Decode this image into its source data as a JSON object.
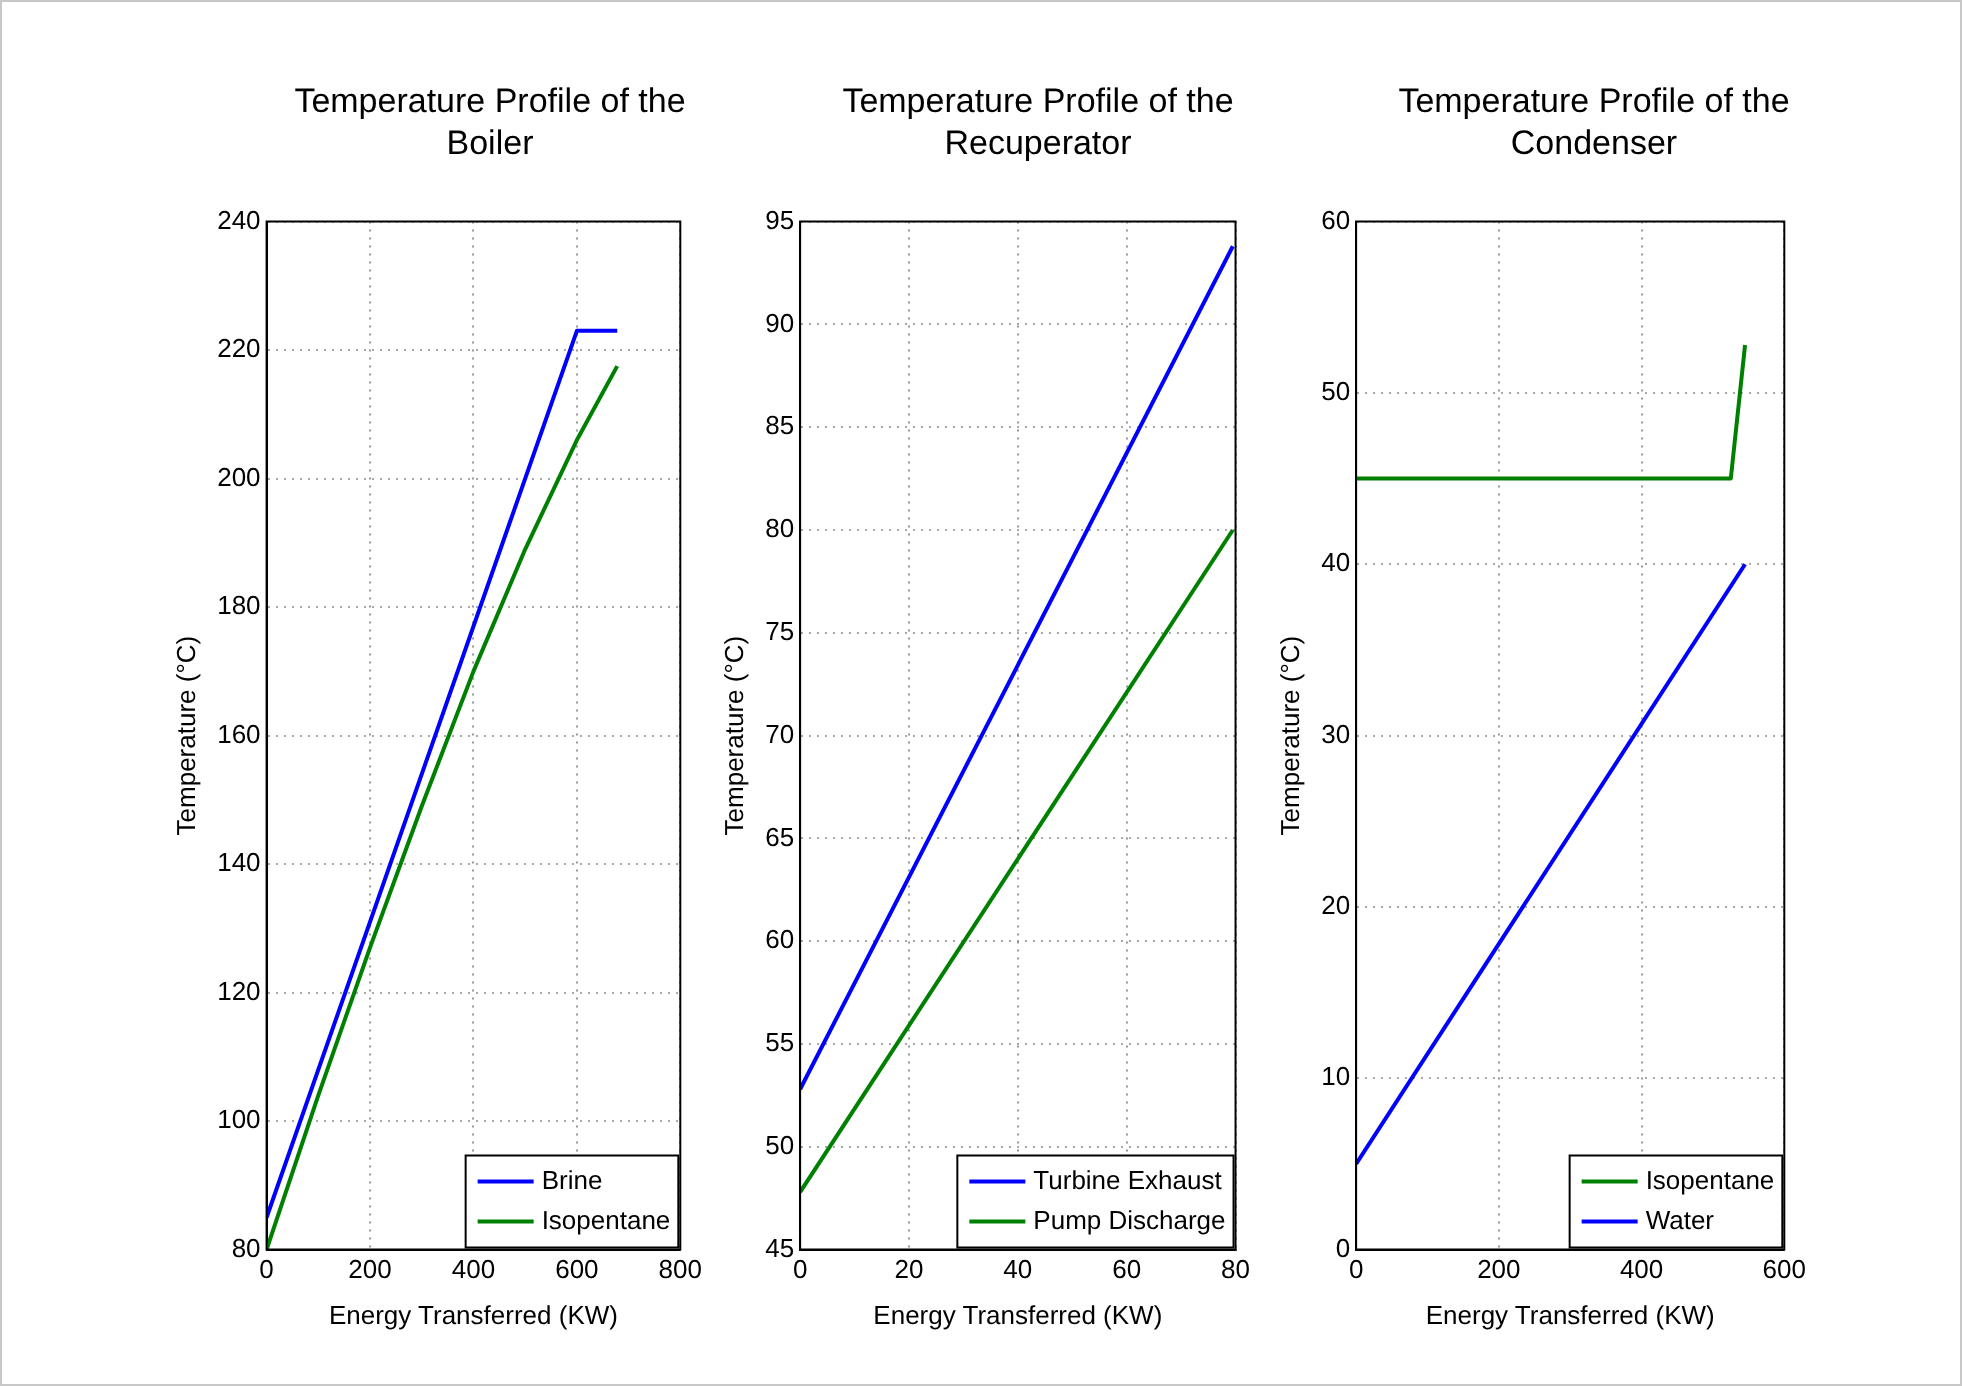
{
  "chart_data": [
    {
      "type": "line",
      "title": "Temperature Profile of the Boiler",
      "xlabel": "Energy Transferred (KW)",
      "ylabel": "Temperature (°C)",
      "xlim": [
        0,
        800
      ],
      "xticks": [
        0,
        200,
        400,
        600,
        800
      ],
      "ylim": [
        80,
        240
      ],
      "yticks": [
        80,
        100,
        120,
        140,
        160,
        180,
        200,
        220,
        240
      ],
      "grid": true,
      "legend": "bottom right",
      "line_style": "solid",
      "marker": "none",
      "series": [
        {
          "name": "Brine",
          "color": "#0000ff",
          "x": [
            0,
            600,
            678
          ],
          "values": [
            85,
            223,
            223
          ]
        },
        {
          "name": "Isopentane",
          "color": "#008000",
          "x": [
            0,
            100,
            200,
            300,
            400,
            500,
            600,
            678
          ],
          "values": [
            80,
            104,
            127,
            149,
            170,
            189,
            206,
            217.5
          ]
        }
      ]
    },
    {
      "type": "line",
      "title": "Temperature Profile of the Recuperator",
      "xlabel": "Energy Transferred (KW)",
      "ylabel": "Temperature (°C)",
      "xlim": [
        0,
        80
      ],
      "xticks": [
        0,
        20,
        40,
        60,
        80
      ],
      "ylim": [
        45,
        95
      ],
      "yticks": [
        45,
        50,
        55,
        60,
        65,
        70,
        75,
        80,
        85,
        90,
        95
      ],
      "grid": true,
      "legend": "bottom right",
      "line_style": "solid",
      "marker": "none",
      "series": [
        {
          "name": "Turbine Exhaust",
          "color": "#0000ff",
          "x": [
            0,
            79.5
          ],
          "values": [
            52.8,
            93.8
          ]
        },
        {
          "name": "Pump Discharge",
          "color": "#008000",
          "x": [
            0,
            79.5
          ],
          "values": [
            47.8,
            80
          ]
        }
      ]
    },
    {
      "type": "line",
      "title": "Temperature Profile of the Condenser",
      "xlabel": "Energy Transferred (KW)",
      "ylabel": "Temperature (°C)",
      "xlim": [
        0,
        600
      ],
      "xticks": [
        0,
        200,
        400,
        600
      ],
      "ylim": [
        0,
        60
      ],
      "yticks": [
        0,
        10,
        20,
        30,
        40,
        50,
        60
      ],
      "grid": true,
      "legend": "bottom right",
      "line_style": "solid",
      "marker": "none",
      "series": [
        {
          "name": "Isopentane",
          "color": "#008000",
          "x": [
            0,
            525,
            545
          ],
          "values": [
            45,
            45,
            52.8
          ]
        },
        {
          "name": "Water",
          "color": "#0000ff",
          "x": [
            0,
            545
          ],
          "values": [
            5,
            40
          ]
        }
      ]
    }
  ]
}
